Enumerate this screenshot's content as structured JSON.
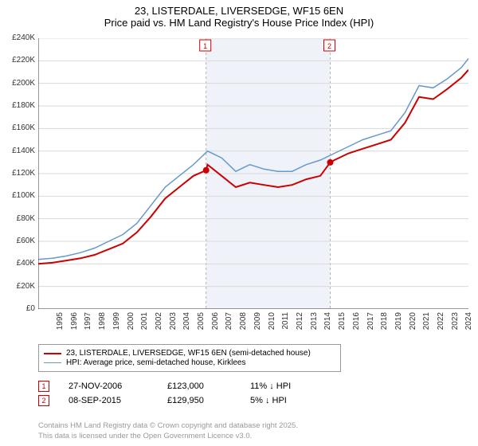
{
  "title": {
    "line1": "23, LISTERDALE, LIVERSEDGE, WF15 6EN",
    "line2": "Price paid vs. HM Land Registry's House Price Index (HPI)",
    "fontsize": 13,
    "color": "#000000"
  },
  "chart": {
    "type": "line",
    "background_color": "#ffffff",
    "grid_color": "#d9d9d9",
    "shaded_band": {
      "x_start": 2006.9,
      "x_end": 2015.7,
      "fill": "#e8eef7",
      "opacity": 0.7
    },
    "x_axis": {
      "min": 1995,
      "max": 2025.5,
      "ticks": [
        1995,
        1996,
        1997,
        1998,
        1999,
        2000,
        2001,
        2002,
        2003,
        2004,
        2005,
        2006,
        2007,
        2008,
        2009,
        2010,
        2011,
        2012,
        2013,
        2014,
        2015,
        2016,
        2017,
        2018,
        2019,
        2020,
        2021,
        2022,
        2023,
        2024,
        2025
      ],
      "tick_fontsize": 10,
      "tick_rotation": -90
    },
    "y_axis": {
      "min": 0,
      "max": 240000,
      "ticks": [
        0,
        20000,
        40000,
        60000,
        80000,
        100000,
        120000,
        140000,
        160000,
        180000,
        200000,
        220000,
        240000
      ],
      "tick_labels": [
        "£0",
        "£20K",
        "£40K",
        "£60K",
        "£80K",
        "£100K",
        "£120K",
        "£140K",
        "£160K",
        "£180K",
        "£200K",
        "£220K",
        "£240K"
      ],
      "tick_fontsize": 10
    },
    "series": [
      {
        "name": "price_paid",
        "label": "23, LISTERDALE, LIVERSEDGE, WF15 6EN (semi-detached house)",
        "color": "#cc0000",
        "line_width": 2,
        "x": [
          1995,
          1996,
          1997,
          1998,
          1999,
          2000,
          2001,
          2002,
          2003,
          2004,
          2005,
          2006,
          2006.9,
          2007,
          2008,
          2009,
          2010,
          2011,
          2012,
          2013,
          2014,
          2015,
          2015.7,
          2016,
          2017,
          2018,
          2019,
          2020,
          2021,
          2022,
          2023,
          2024,
          2025,
          2025.5
        ],
        "y": [
          40000,
          41000,
          43000,
          45000,
          48000,
          53000,
          58000,
          68000,
          82000,
          98000,
          108000,
          118000,
          123000,
          128000,
          118000,
          108000,
          112000,
          110000,
          108000,
          110000,
          115000,
          118000,
          129950,
          132000,
          138000,
          142000,
          146000,
          150000,
          165000,
          188000,
          186000,
          195000,
          205000,
          212000
        ]
      },
      {
        "name": "hpi",
        "label": "HPI: Average price, semi-detached house, Kirklees",
        "color": "#6699cc",
        "line_width": 1.5,
        "x": [
          1995,
          1996,
          1997,
          1998,
          1999,
          2000,
          2001,
          2002,
          2003,
          2004,
          2005,
          2006,
          2007,
          2008,
          2009,
          2010,
          2011,
          2012,
          2013,
          2014,
          2015,
          2016,
          2017,
          2018,
          2019,
          2020,
          2021,
          2022,
          2023,
          2024,
          2025,
          2025.5
        ],
        "y": [
          44000,
          45000,
          47000,
          50000,
          54000,
          60000,
          66000,
          76000,
          92000,
          108000,
          118000,
          128000,
          140000,
          134000,
          122000,
          128000,
          124000,
          122000,
          122000,
          128000,
          132000,
          138000,
          144000,
          150000,
          154000,
          158000,
          174000,
          198000,
          196000,
          204000,
          214000,
          222000
        ]
      }
    ],
    "markers": [
      {
        "id": "1",
        "x": 2006.9,
        "y": 123000,
        "color": "#cc0000",
        "radius": 4
      },
      {
        "id": "2",
        "x": 2015.7,
        "y": 129950,
        "color": "#cc0000",
        "radius": 4
      }
    ],
    "marker_badges": [
      {
        "id": "1",
        "x": 2006.9,
        "y_top": true
      },
      {
        "id": "2",
        "x": 2015.7,
        "y_top": true
      }
    ]
  },
  "legend": {
    "border_color": "#999999",
    "fontsize": 10,
    "items": [
      {
        "color": "#cc0000",
        "width": 2,
        "label": "23, LISTERDALE, LIVERSEDGE, WF15 6EN (semi-detached house)"
      },
      {
        "color": "#6699cc",
        "width": 1.5,
        "label": "HPI: Average price, semi-detached house, Kirklees"
      }
    ]
  },
  "annotations": {
    "fontsize": 11,
    "badge_border": "#cc0000",
    "badge_text_color": "#cc0000",
    "rows": [
      {
        "badge": "1",
        "date": "27-NOV-2006",
        "price": "£123,000",
        "delta": "11% ↓ HPI"
      },
      {
        "badge": "2",
        "date": "08-SEP-2015",
        "price": "£129,950",
        "delta": "5% ↓ HPI"
      }
    ]
  },
  "footer": {
    "line1": "Contains HM Land Registry data © Crown copyright and database right 2025.",
    "line2": "This data is licensed under the Open Government Licence v3.0.",
    "color": "#999999",
    "fontsize": 9.5
  }
}
